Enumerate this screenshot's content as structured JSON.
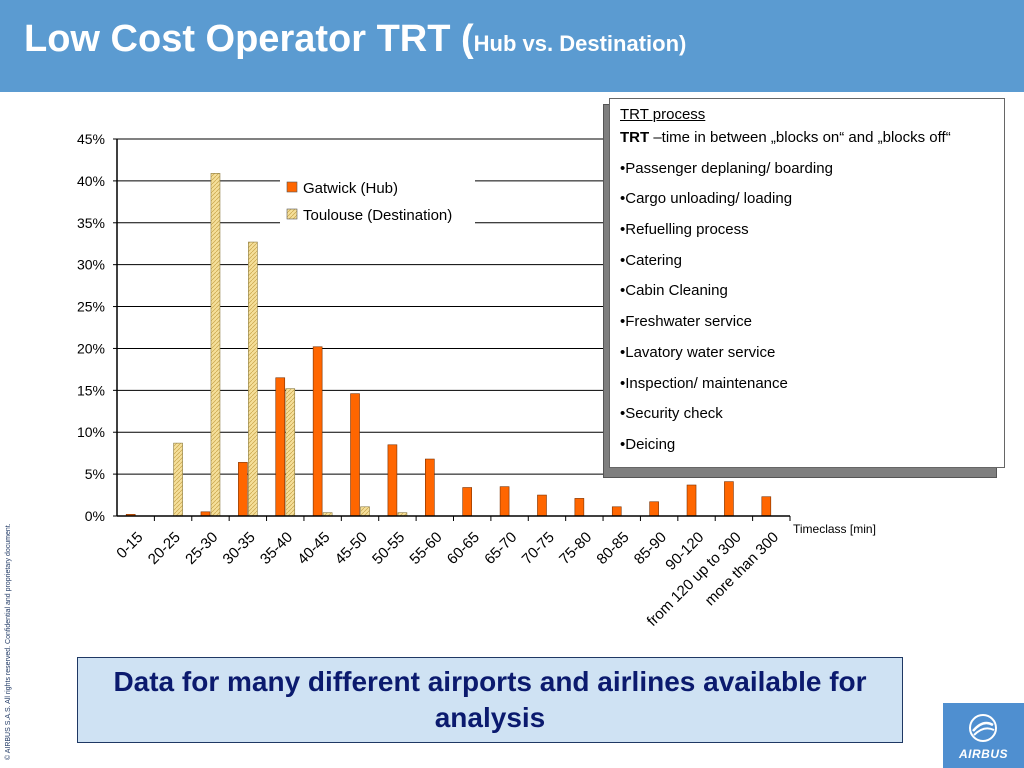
{
  "header": {
    "title_main": "Low Cost Operator TRT (",
    "title_sub": "Hub vs. Destination)",
    "bg_color": "#5b9bd1"
  },
  "chart_data": {
    "type": "bar",
    "categories": [
      "0-15",
      "20-25",
      "25-30",
      "30-35",
      "35-40",
      "40-45",
      "45-50",
      "50-55",
      "55-60",
      "60-65",
      "65-70",
      "70-75",
      "75-80",
      "80-85",
      "85-90",
      "90-120",
      "from 120 up to 300",
      "more than 300"
    ],
    "series": [
      {
        "name": "Gatwick (Hub)",
        "color": "#ff6600",
        "values": [
          0.2,
          0,
          0.5,
          6.4,
          16.5,
          20.2,
          14.6,
          8.5,
          6.8,
          3.4,
          3.5,
          2.5,
          2.1,
          1.1,
          1.7,
          3.7,
          4.1,
          2.3
        ]
      },
      {
        "name": "Toulouse (Destination)",
        "color": "#f5df9a",
        "values": [
          0,
          8.7,
          40.9,
          32.7,
          15.2,
          0.4,
          1.1,
          0.4,
          0,
          0,
          0,
          0,
          0,
          0,
          0,
          0,
          0,
          0
        ]
      }
    ],
    "yticks": [
      "0%",
      "5%",
      "10%",
      "15%",
      "20%",
      "25%",
      "30%",
      "35%",
      "40%",
      "45%"
    ],
    "ylim": [
      0,
      45
    ],
    "xlabel": "Timeclass [min]",
    "ylabel": "",
    "grid": true,
    "legend_position": "top-center"
  },
  "info_box": {
    "title": "TRT process",
    "def_term": "TRT",
    "def_text": " –time in between „blocks on“ and „blocks off“",
    "items": [
      "•Passenger deplaning/ boarding",
      "•Cargo unloading/ loading",
      "•Refuelling process",
      "•Catering",
      "•Cabin Cleaning",
      "•Freshwater service",
      "•Lavatory water service",
      "•Inspection/ maintenance",
      "•Security check",
      "•Deicing"
    ]
  },
  "banner": {
    "text": "Data for many different airports and airlines available for analysis"
  },
  "footer": {
    "copyright": "© AIRBUS S.A.S. All rights reserved. Confidential and proprietary document.",
    "logo_text": "AIRBUS"
  }
}
